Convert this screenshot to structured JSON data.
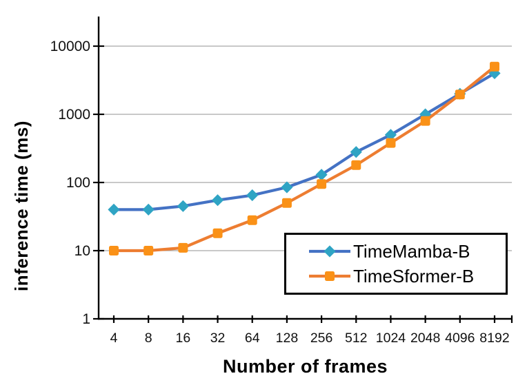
{
  "chart_data": {
    "type": "line",
    "title": "",
    "xlabel": "Number of frames",
    "ylabel": "inference time (ms)",
    "x_scale": "categorical-log2",
    "y_scale": "log10",
    "ylim": [
      1,
      10000
    ],
    "y_ticks": [
      "1",
      "10",
      "100",
      "1000",
      "10000"
    ],
    "categories": [
      "4",
      "8",
      "16",
      "32",
      "64",
      "128",
      "256",
      "512",
      "1024",
      "2048",
      "4096",
      "8192"
    ],
    "series": [
      {
        "name": "TimeMamba-B",
        "marker": "diamond",
        "line_color": "#4472C4",
        "marker_color": "#2FA4C4",
        "values": [
          40,
          40,
          45,
          55,
          65,
          85,
          130,
          280,
          500,
          1000,
          2000,
          4000
        ]
      },
      {
        "name": "TimeSformer-B",
        "marker": "square",
        "line_color": "#ED7D31",
        "marker_color": "#FA9117",
        "values": [
          10,
          10,
          11,
          18,
          28,
          50,
          95,
          180,
          380,
          800,
          1950,
          5000
        ]
      }
    ],
    "legend_position": "inside-bottom-right",
    "grid": "horizontal",
    "grid_color": "#A6A6A6",
    "axis_color": "#000000",
    "tick_label_color": "#111111",
    "background": "#FFFFFF"
  }
}
